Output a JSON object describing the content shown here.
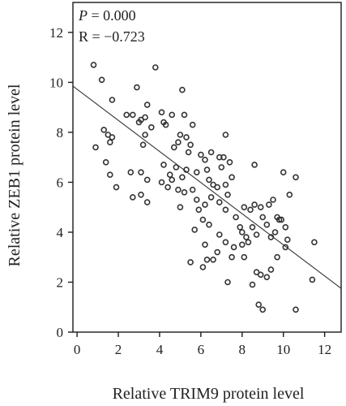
{
  "chart_data": {
    "type": "scatter",
    "xlabel": "Relative TRIM9 protein level",
    "ylabel": "Relative ZEB1 protein level",
    "xlim": [
      -0.2,
      12.8
    ],
    "ylim": [
      0,
      13.2
    ],
    "xticks": [
      0,
      2,
      4,
      6,
      8,
      10,
      12
    ],
    "yticks": [
      0,
      2,
      4,
      6,
      8,
      10,
      12
    ],
    "grid": false,
    "legend": "none",
    "annotations": {
      "p_symbol": "P",
      "p_value": " = 0.000",
      "r_text": "R = −0.723"
    },
    "regression_line": {
      "x": [
        -0.2,
        12.8
      ],
      "y": [
        9.85,
        1.75
      ]
    },
    "points": [
      [
        0.8,
        10.7
      ],
      [
        1.2,
        10.1
      ],
      [
        1.7,
        9.3
      ],
      [
        2.9,
        9.8
      ],
      [
        3.8,
        10.6
      ],
      [
        0.9,
        7.4
      ],
      [
        1.3,
        8.1
      ],
      [
        1.5,
        7.9
      ],
      [
        1.6,
        7.6
      ],
      [
        1.7,
        7.8
      ],
      [
        1.4,
        6.8
      ],
      [
        1.6,
        6.3
      ],
      [
        1.9,
        5.8
      ],
      [
        2.4,
        8.7
      ],
      [
        2.7,
        8.7
      ],
      [
        3.0,
        8.4
      ],
      [
        3.1,
        8.5
      ],
      [
        3.3,
        8.6
      ],
      [
        3.4,
        9.1
      ],
      [
        3.3,
        7.9
      ],
      [
        3.6,
        8.2
      ],
      [
        3.2,
        7.5
      ],
      [
        2.6,
        6.4
      ],
      [
        3.1,
        6.4
      ],
      [
        3.4,
        6.1
      ],
      [
        2.7,
        5.4
      ],
      [
        3.1,
        5.5
      ],
      [
        3.4,
        5.2
      ],
      [
        4.1,
        8.8
      ],
      [
        4.2,
        8.4
      ],
      [
        4.3,
        8.3
      ],
      [
        4.6,
        8.7
      ],
      [
        4.7,
        7.4
      ],
      [
        4.9,
        7.6
      ],
      [
        5.1,
        9.7
      ],
      [
        5.2,
        8.7
      ],
      [
        5.6,
        8.3
      ],
      [
        5.0,
        7.9
      ],
      [
        5.3,
        7.8
      ],
      [
        5.5,
        7.5
      ],
      [
        5.4,
        7.2
      ],
      [
        4.2,
        6.7
      ],
      [
        4.5,
        6.3
      ],
      [
        4.6,
        6.1
      ],
      [
        4.8,
        6.6
      ],
      [
        5.1,
        6.2
      ],
      [
        5.3,
        6.5
      ],
      [
        4.1,
        6.0
      ],
      [
        4.4,
        5.8
      ],
      [
        4.9,
        5.7
      ],
      [
        5.2,
        5.6
      ],
      [
        5.6,
        5.7
      ],
      [
        5.8,
        5.3
      ],
      [
        6.0,
        7.1
      ],
      [
        6.2,
        6.9
      ],
      [
        6.3,
        6.5
      ],
      [
        6.5,
        7.2
      ],
      [
        6.4,
        6.1
      ],
      [
        6.6,
        5.9
      ],
      [
        6.8,
        5.8
      ],
      [
        5.8,
        6.4
      ],
      [
        6.2,
        5.1
      ],
      [
        6.5,
        5.4
      ],
      [
        6.9,
        5.2
      ],
      [
        6.9,
        7.0
      ],
      [
        7.1,
        7.0
      ],
      [
        7.2,
        7.9
      ],
      [
        7.4,
        6.8
      ],
      [
        7.0,
        6.6
      ],
      [
        7.2,
        5.9
      ],
      [
        7.5,
        6.2
      ],
      [
        7.3,
        5.5
      ],
      [
        7.2,
        4.9
      ],
      [
        7.7,
        4.6
      ],
      [
        7.9,
        4.2
      ],
      [
        8.1,
        5.0
      ],
      [
        8.0,
        4.0
      ],
      [
        8.2,
        3.8
      ],
      [
        8.4,
        4.9
      ],
      [
        8.5,
        4.2
      ],
      [
        8.3,
        3.6
      ],
      [
        8.7,
        3.9
      ],
      [
        8.6,
        5.1
      ],
      [
        8.6,
        6.7
      ],
      [
        9.0,
        4.6
      ],
      [
        9.3,
        5.1
      ],
      [
        9.5,
        5.3
      ],
      [
        9.7,
        4.6
      ],
      [
        9.9,
        4.5
      ],
      [
        10.1,
        4.2
      ],
      [
        9.6,
        4.0
      ],
      [
        9.4,
        3.8
      ],
      [
        10.0,
        6.4
      ],
      [
        10.6,
        6.2
      ],
      [
        9.2,
        4.3
      ],
      [
        8.0,
        3.5
      ],
      [
        7.6,
        3.4
      ],
      [
        7.2,
        3.6
      ],
      [
        6.8,
        3.2
      ],
      [
        6.6,
        2.9
      ],
      [
        6.9,
        3.9
      ],
      [
        7.5,
        3.0
      ],
      [
        8.1,
        3.0
      ],
      [
        8.7,
        2.4
      ],
      [
        8.9,
        2.3
      ],
      [
        9.2,
        2.2
      ],
      [
        9.4,
        2.5
      ],
      [
        9.7,
        3.0
      ],
      [
        10.1,
        3.4
      ],
      [
        5.5,
        2.8
      ],
      [
        6.1,
        2.6
      ],
      [
        6.3,
        2.9
      ],
      [
        6.2,
        3.5
      ],
      [
        7.3,
        2.0
      ],
      [
        8.5,
        1.9
      ],
      [
        8.8,
        1.1
      ],
      [
        9.0,
        0.9
      ],
      [
        10.6,
        0.9
      ],
      [
        11.4,
        2.1
      ],
      [
        11.5,
        3.6
      ],
      [
        10.2,
        3.7
      ],
      [
        9.8,
        4.5
      ],
      [
        10.3,
        5.5
      ],
      [
        8.9,
        5.0
      ],
      [
        6.1,
        4.5
      ],
      [
        5.7,
        4.1
      ],
      [
        5.0,
        5.0
      ],
      [
        5.9,
        4.9
      ],
      [
        6.4,
        4.3
      ]
    ]
  }
}
